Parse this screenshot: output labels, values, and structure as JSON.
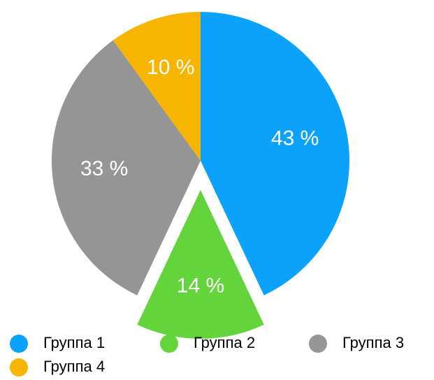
{
  "chart_data": {
    "type": "pie",
    "categories": [
      "Группа 1",
      "Группа 2",
      "Группа 3",
      "Группа 4"
    ],
    "values": [
      43,
      14,
      33,
      10
    ],
    "value_labels": [
      "43 %",
      "14 %",
      "33 %",
      "10 %"
    ],
    "colors": [
      "#0aa2fb",
      "#63d43c",
      "#959595",
      "#f8b500"
    ],
    "legend": "bottom"
  }
}
